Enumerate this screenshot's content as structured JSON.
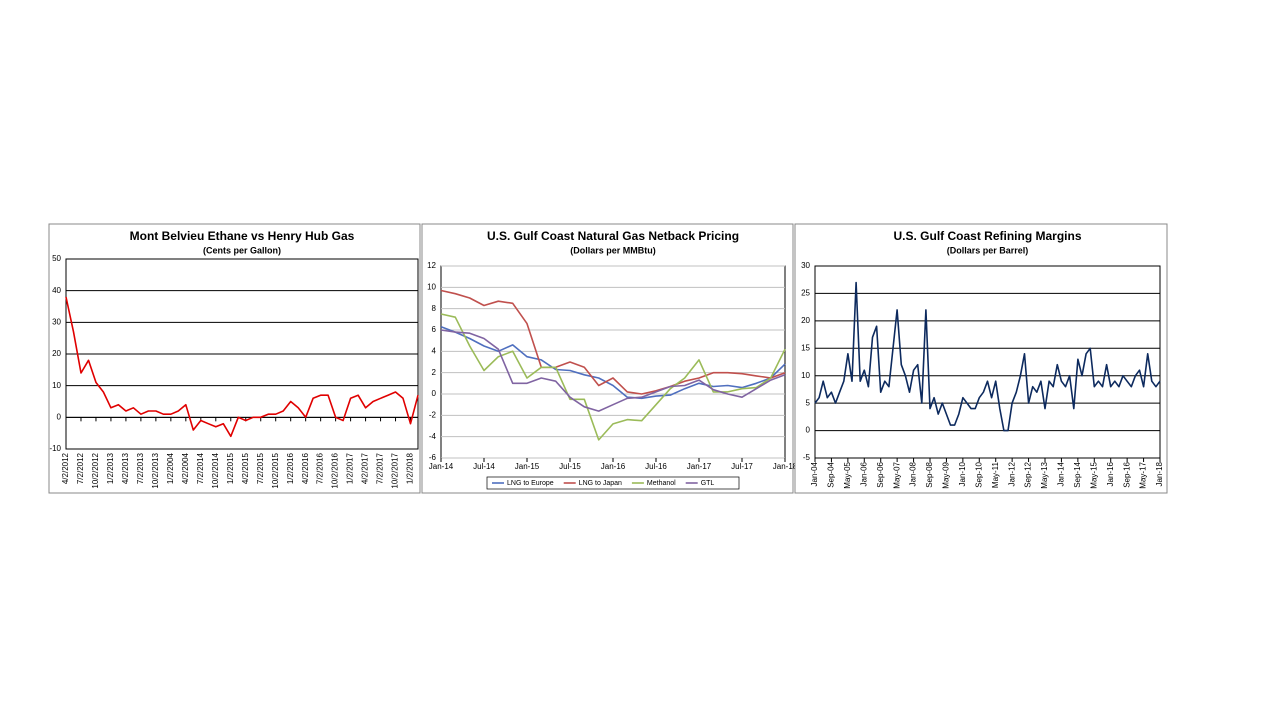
{
  "chart_data": [
    {
      "type": "line",
      "title": "Mont Belvieu Ethane vs Henry Hub Gas",
      "subtitle": "(Cents per Gallon)",
      "categories": [
        "4/2/2012",
        null,
        "7/2/2012",
        null,
        "10/2/2012",
        null,
        "1/2/2013",
        null,
        "4/2/2013",
        null,
        "7/2/2013",
        null,
        "10/2/2013",
        null,
        "1/2/2004",
        null,
        "4/2/2004",
        null,
        "7/2/2014",
        null,
        "10/2/2014",
        null,
        "1/2/2015",
        null,
        "4/2/2015",
        null,
        "7/2/2015",
        null,
        "10/2/2015",
        null,
        "1/2/2016",
        null,
        "4/2/2016",
        null,
        "7/2/2016",
        null,
        "10/2/2016",
        null,
        "1/2/2017",
        null,
        "4/2/2017",
        null,
        "7/2/2017",
        null,
        "10/2/2017",
        null,
        "1/2/2018",
        null
      ],
      "values": [
        38,
        27,
        14,
        18,
        11,
        8,
        3,
        4,
        2,
        3,
        1,
        2,
        2,
        1,
        1,
        2,
        4,
        -4,
        -1,
        -2,
        -3,
        -2,
        -6,
        0,
        -1,
        0,
        0,
        1,
        1,
        2,
        5,
        3,
        0,
        6,
        7,
        7,
        0,
        -1,
        6,
        7,
        3,
        5,
        6,
        7,
        8,
        6,
        -2,
        7
      ],
      "color": "#e00000",
      "ylim": [
        -10,
        50
      ],
      "yticks": [
        -10,
        0,
        10,
        20,
        30,
        40,
        50
      ],
      "grid": true,
      "grid_color": "#000000"
    },
    {
      "type": "line",
      "title": "U.S. Gulf Coast Natural Gas Netback Pricing",
      "subtitle": "(Dollars per MMBtu)",
      "categories": [
        "Jan-14",
        null,
        null,
        "Jul-14",
        null,
        null,
        "Jan-15",
        null,
        null,
        "Jul-15",
        null,
        null,
        "Jan-16",
        null,
        null,
        "Jul-16",
        null,
        null,
        "Jan-17",
        null,
        null,
        "Jul-17",
        null,
        null,
        "Jan-18"
      ],
      "series": [
        {
          "name": "LNG to Europe",
          "color": "#4f6fbf",
          "values": [
            6.3,
            5.8,
            5.2,
            4.5,
            4.0,
            4.6,
            3.5,
            3.2,
            2.3,
            2.2,
            1.8,
            1.5,
            0.8,
            -0.3,
            -0.4,
            -0.2,
            -0.1,
            0.5,
            1.0,
            0.7,
            0.8,
            0.6,
            1.0,
            1.5,
            2.8
          ]
        },
        {
          "name": "LNG to Japan",
          "color": "#c0504d",
          "values": [
            9.7,
            9.4,
            9.0,
            8.3,
            8.7,
            8.5,
            6.6,
            2.5,
            2.5,
            3.0,
            2.5,
            0.8,
            1.5,
            0.2,
            0,
            0.3,
            0.7,
            1.2,
            1.5,
            2.0,
            2.0,
            1.9,
            1.7,
            1.5,
            2.0
          ]
        },
        {
          "name": "Methanol",
          "color": "#9bbb59",
          "values": [
            7.5,
            7.2,
            4.5,
            2.2,
            3.5,
            4.0,
            1.5,
            2.5,
            2.5,
            -0.5,
            -0.5,
            -4.3,
            -2.8,
            -2.4,
            -2.5,
            -1.0,
            0.5,
            1.5,
            3.2,
            0.2,
            0.2,
            0.5,
            0.6,
            1.5,
            4.2
          ]
        },
        {
          "name": "GTL",
          "color": "#8064a2",
          "values": [
            6.0,
            5.8,
            5.7,
            5.2,
            4.2,
            1.0,
            1.0,
            1.5,
            1.2,
            -0.3,
            -1.2,
            -1.6,
            -1.0,
            -0.4,
            -0.3,
            0.2,
            0.7,
            0.8,
            1.3,
            0.4,
            0.0,
            -0.3,
            0.5,
            1.3,
            1.8
          ]
        }
      ],
      "ylim": [
        -6,
        12
      ],
      "yticks": [
        -6,
        -4,
        -2,
        0,
        2,
        4,
        6,
        8,
        10,
        12
      ],
      "grid": true,
      "grid_color": "#c0c0c0",
      "legend": "bottom"
    },
    {
      "type": "line",
      "title": "U.S. Gulf Coast Refining Margins",
      "subtitle": "(Dollars per Barrel)",
      "categories": [
        "Jan-04",
        null,
        null,
        null,
        "Sep-04",
        null,
        null,
        null,
        "May-05",
        null,
        null,
        null,
        "Jan-06",
        null,
        null,
        null,
        "Sep-06",
        null,
        null,
        null,
        "May-07",
        null,
        null,
        null,
        "Jan-08",
        null,
        null,
        null,
        "Sep-08",
        null,
        null,
        null,
        "May-09",
        null,
        null,
        null,
        "Jan-10",
        null,
        null,
        null,
        "Sep-10",
        null,
        null,
        null,
        "May-11",
        null,
        null,
        null,
        "Jan-12",
        null,
        null,
        null,
        "Sep-12",
        null,
        null,
        null,
        "May-13",
        null,
        null,
        null,
        "Jan-14",
        null,
        null,
        null,
        "Sep-14",
        null,
        null,
        null,
        "May-15",
        null,
        null,
        null,
        "Jan-16",
        null,
        null,
        null,
        "Sep-16",
        null,
        null,
        null,
        "May-17",
        null,
        null,
        null,
        "Jan-18"
      ],
      "values": [
        5,
        6,
        9,
        6,
        7,
        5,
        7,
        9,
        14,
        9,
        27,
        9,
        11,
        8,
        17,
        19,
        7,
        9,
        8,
        15,
        22,
        12,
        10,
        7,
        11,
        12,
        5,
        22,
        4,
        6,
        3,
        5,
        3,
        1,
        1,
        3,
        6,
        5,
        4,
        4,
        6,
        7,
        9,
        6,
        9,
        4,
        0,
        0,
        5,
        7,
        10,
        14,
        5,
        8,
        7,
        9,
        4,
        9,
        8,
        12,
        9,
        8,
        10,
        4,
        13,
        10,
        14,
        15,
        8,
        9,
        8,
        12,
        8,
        9,
        8,
        10,
        9,
        8,
        10,
        11,
        8,
        14,
        9,
        8,
        9
      ],
      "color": "#0d2a5e",
      "ylim": [
        -5,
        30
      ],
      "yticks": [
        -5,
        0,
        5,
        10,
        15,
        20,
        25,
        30
      ],
      "grid": true,
      "grid_color": "#000000"
    }
  ]
}
